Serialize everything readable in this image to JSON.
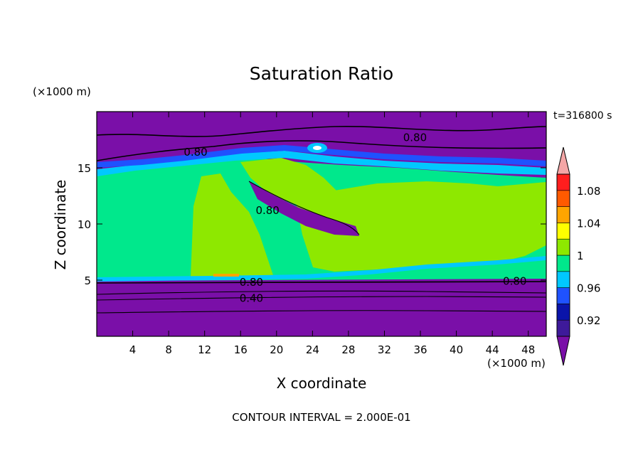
{
  "chart_data": {
    "type": "heatmap",
    "title": "Saturation Ratio",
    "xlabel": "X coordinate",
    "ylabel": "Z coordinate",
    "x_unit": "(×1000 m)",
    "y_unit": "(×1000 m)",
    "time_label": "t=316800 s",
    "footer": "CONTOUR INTERVAL = 2.000E-01",
    "xlim": [
      0,
      50
    ],
    "ylim": [
      0,
      20
    ],
    "x_ticks": [
      4,
      8,
      12,
      16,
      20,
      24,
      28,
      32,
      36,
      40,
      44,
      48
    ],
    "x_tick_labels": [
      "4",
      "8",
      "12",
      "16",
      "20",
      "24",
      "28",
      "32",
      "36",
      "40",
      "44",
      "48"
    ],
    "y_ticks": [
      5,
      10,
      15
    ],
    "y_tick_labels": [
      "5",
      "10",
      "15"
    ],
    "colorbar": {
      "levels": [
        0.9,
        0.92,
        0.94,
        0.96,
        0.98,
        1,
        1.02,
        1.04,
        1.06,
        1.08,
        1.1
      ],
      "labels": [
        "0.92",
        "0.96",
        "1",
        "1.04",
        "1.08"
      ],
      "label_values": [
        0.92,
        0.96,
        1.0,
        1.04,
        1.08
      ],
      "colors": [
        "#3e1a9a",
        "#0a14aa",
        "#1f52ff",
        "#00c8ff",
        "#00e88c",
        "#8ee800",
        "#ffff00",
        "#ffa500",
        "#ff5a00",
        "#ff1e1e"
      ],
      "below_color": "#7a0fa8",
      "above_color": "#f4a6a6"
    },
    "regions": [
      {
        "name": "base-layer",
        "value": 0.8,
        "color": "#7a0fa8"
      },
      {
        "name": "mid-layer-left",
        "value": 0.99,
        "color": "#00e88c"
      },
      {
        "name": "mid-layer-right",
        "value": 1.0,
        "color": "#8ee800"
      },
      {
        "name": "central-column",
        "value": 1.0,
        "color": "#8ee800"
      },
      {
        "name": "upper-cloud",
        "value": 1.0,
        "color": "#8ee800"
      }
    ],
    "contour_labels": [
      {
        "text": "0.80",
        "x": 35.4,
        "z": 17.7
      },
      {
        "text": "0.80",
        "x": 11.0,
        "z": 16.4
      },
      {
        "text": "0.80",
        "x": 19.0,
        "z": 11.2
      },
      {
        "text": "0.80",
        "x": 17.2,
        "z": 4.8
      },
      {
        "text": "0.80",
        "x": 46.5,
        "z": 4.9
      },
      {
        "text": "0.40",
        "x": 17.2,
        "z": 3.4
      }
    ]
  }
}
